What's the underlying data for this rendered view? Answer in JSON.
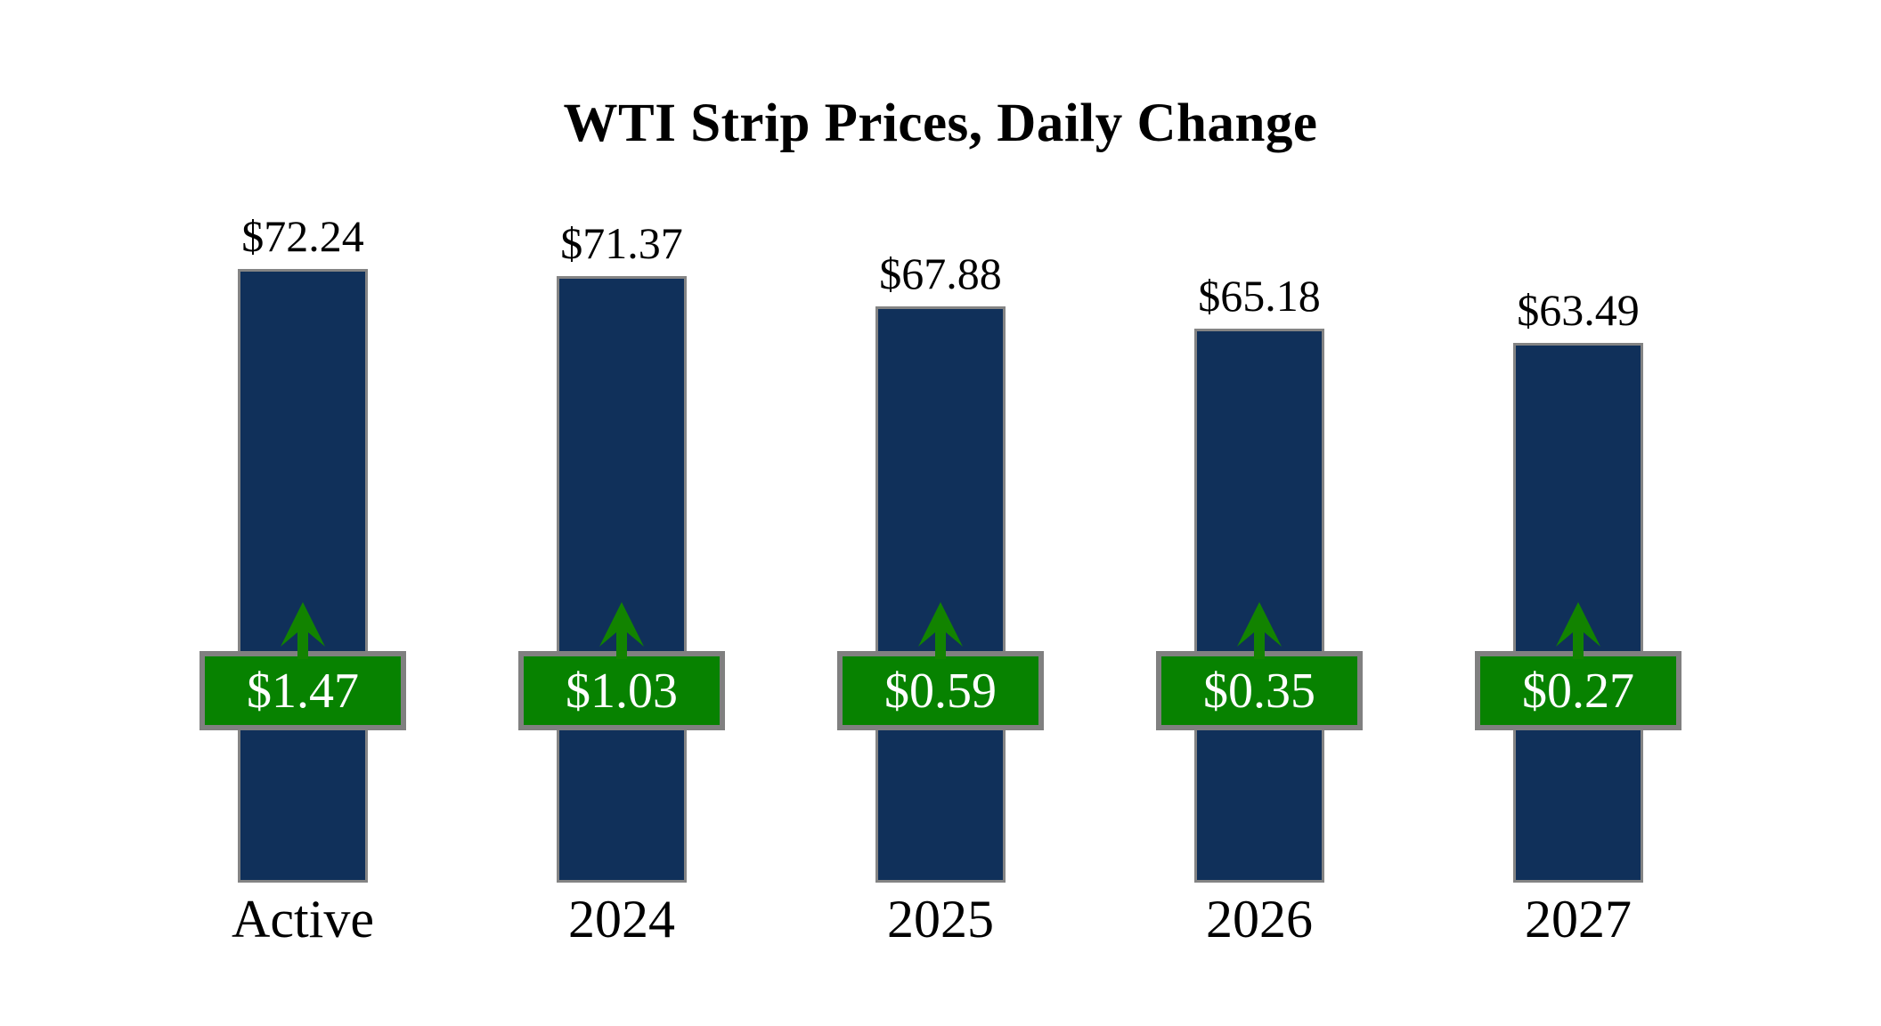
{
  "chart_data": {
    "type": "bar",
    "title": "WTI Strip Prices, Daily Change",
    "categories": [
      "Active",
      "2024",
      "2025",
      "2026",
      "2027"
    ],
    "series": [
      {
        "name": "strip_price",
        "values": [
          72.24,
          71.37,
          67.88,
          65.18,
          63.49
        ],
        "labels": [
          "$72.24",
          "$71.37",
          "$67.88",
          "$65.18",
          "$63.49"
        ]
      },
      {
        "name": "daily_change",
        "values": [
          1.47,
          1.03,
          0.59,
          0.35,
          0.27
        ],
        "labels": [
          "$1.47",
          "$1.03",
          "$0.59",
          "$0.35",
          "$0.27"
        ]
      }
    ],
    "ylim": [
      0,
      72.24
    ],
    "grid": false,
    "legend": false,
    "axes_visible": false,
    "value_labels_position": "above-bar",
    "change_indicator": "green-up-arrow-badge",
    "colors": {
      "bar": "#10305A",
      "bar_border": "#848484",
      "badge": "#078200",
      "badge_border": "#808080",
      "arrow": "#128300",
      "value_text": "#000000",
      "badge_text": "#FFFFFF",
      "background": "#FFFFFF"
    }
  }
}
